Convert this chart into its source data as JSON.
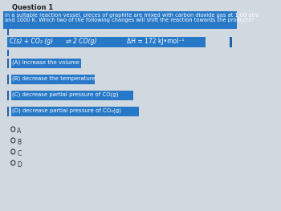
{
  "title": "Question 1",
  "question_line1": "In a suitable reaction vessel, pieces of graphite are mixed with carbon dioxide gas at 1.00 atm",
  "question_line2": "and 1000 K. Which two of the following changes will shift the reaction towards the products?",
  "eq_left": "C(s) + CO₂ (g)",
  "eq_arrow": "⇌",
  "eq_right": "2 CO(g)",
  "eq_dH": "ΔH = 172 kJ•mol⁻¹",
  "options": [
    "(A) increase the volume",
    "(B) decrease the temperature",
    "(C) decrease partial pressure of CO(g)",
    "(D) decrease partial pressure of CO₂(g)"
  ],
  "radio_labels": [
    "A",
    "B",
    "C",
    "D"
  ],
  "page_bg": "#d0d8e0",
  "question_bg": "#2878c8",
  "equation_bg": "#2878c8",
  "option_bg": "#2878c8",
  "accent_bar_color": "#2060b0",
  "text_white": "#ffffff",
  "title_color": "#222222",
  "radio_color": "#333333"
}
